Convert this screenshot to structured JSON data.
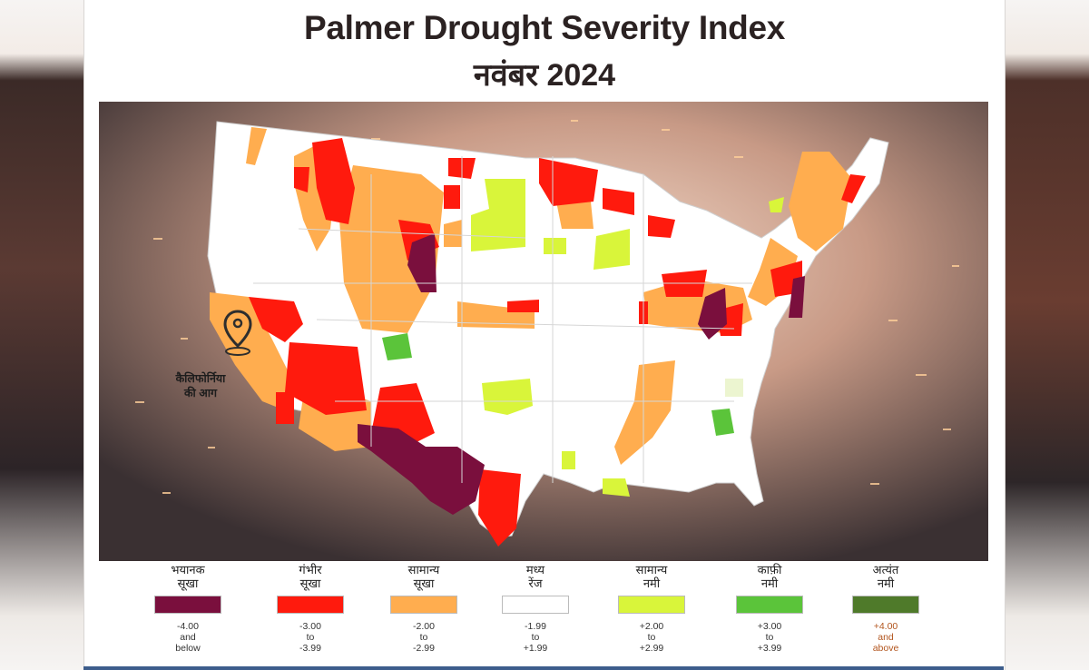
{
  "header": {
    "title": "Palmer Drought Severity Index",
    "subtitle": "नवंबर 2024"
  },
  "map": {
    "region": "Contiguous United States",
    "callout_label_line1": "कैलिफोर्निया",
    "callout_label_line2": "की आग",
    "marker_icon": "location-pin-icon"
  },
  "legend": [
    {
      "label_line1": "भयानक",
      "label_line2": "सूखा",
      "color": "#7a0f3d",
      "range": [
        "-4.00",
        "and",
        "below"
      ]
    },
    {
      "label_line1": "गंभीर",
      "label_line2": "सूखा",
      "color": "#ff1a0d",
      "range": [
        "-3.00",
        "to",
        "-3.99"
      ]
    },
    {
      "label_line1": "सामान्य",
      "label_line2": "सूखा",
      "color": "#ffad4f",
      "range": [
        "-2.00",
        "to",
        "-2.99"
      ]
    },
    {
      "label_line1": "मध्य",
      "label_line2": "रेंज",
      "color": "#ffffff",
      "range": [
        "-1.99",
        "to",
        "+1.99"
      ]
    },
    {
      "label_line1": "सामान्य",
      "label_line2": "नमी",
      "color": "#d9f53a",
      "range": [
        "+2.00",
        "to",
        "+2.99"
      ]
    },
    {
      "label_line1": "काफ़ी",
      "label_line2": "नमी",
      "color": "#5bc43a",
      "range": [
        "+3.00",
        "to",
        "+3.99"
      ]
    },
    {
      "label_line1": "अत्यंत",
      "label_line2": "नमी",
      "color": "#4f7a2a",
      "range": [
        "+4.00",
        "and",
        "above"
      ]
    }
  ]
}
